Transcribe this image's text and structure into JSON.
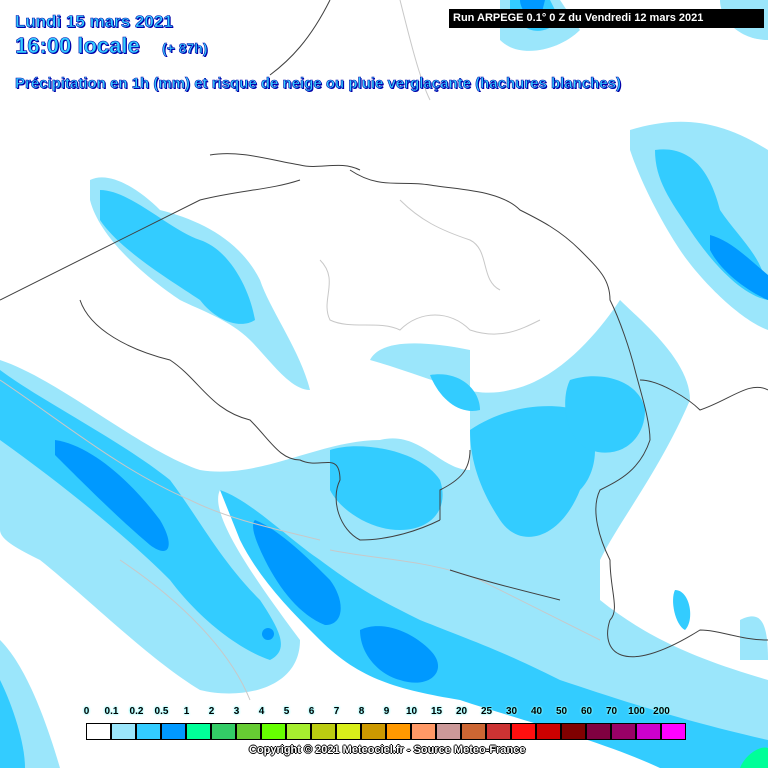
{
  "header": {
    "date": "Lundi 15 mars 2021",
    "time": "16:00 locale",
    "lead": "(+ 87h)",
    "subtitle": "Précipitation en 1h (mm) et risque de neige ou pluie verglaçante (hachures blanches)",
    "run": "Run ARPEGE 0.1° 0 Z du Vendredi 12 mars 2021"
  },
  "legend": {
    "labels": [
      "0",
      "0.1",
      "0.2",
      "0.5",
      "1",
      "2",
      "3",
      "4",
      "5",
      "6",
      "7",
      "8",
      "9",
      "10",
      "15",
      "20",
      "25",
      "30",
      "40",
      "50",
      "60",
      "70",
      "100",
      "200"
    ],
    "colors": [
      "#ffffff",
      "#9be6fb",
      "#33ccff",
      "#0099ff",
      "#00ff99",
      "#33cc66",
      "#66cc33",
      "#66ff00",
      "#a6ef2f",
      "#bbcc11",
      "#d9ef1a",
      "#cc9900",
      "#ff9900",
      "#ff9966",
      "#cc9999",
      "#cc6633",
      "#cc3333",
      "#ff0f0f",
      "#cc0000",
      "#800000",
      "#800040",
      "#990066",
      "#cc00cc",
      "#ff00ff"
    ]
  },
  "map_colors": {
    "border": "#404040",
    "region": "#c8c8c8",
    "light": "#9be6fb",
    "medium": "#33ccff",
    "heavy": "#0099ff",
    "green": "#00ff99"
  },
  "copyright": "Copyright © 2021 Meteociel.fr - Source Meteo-France"
}
